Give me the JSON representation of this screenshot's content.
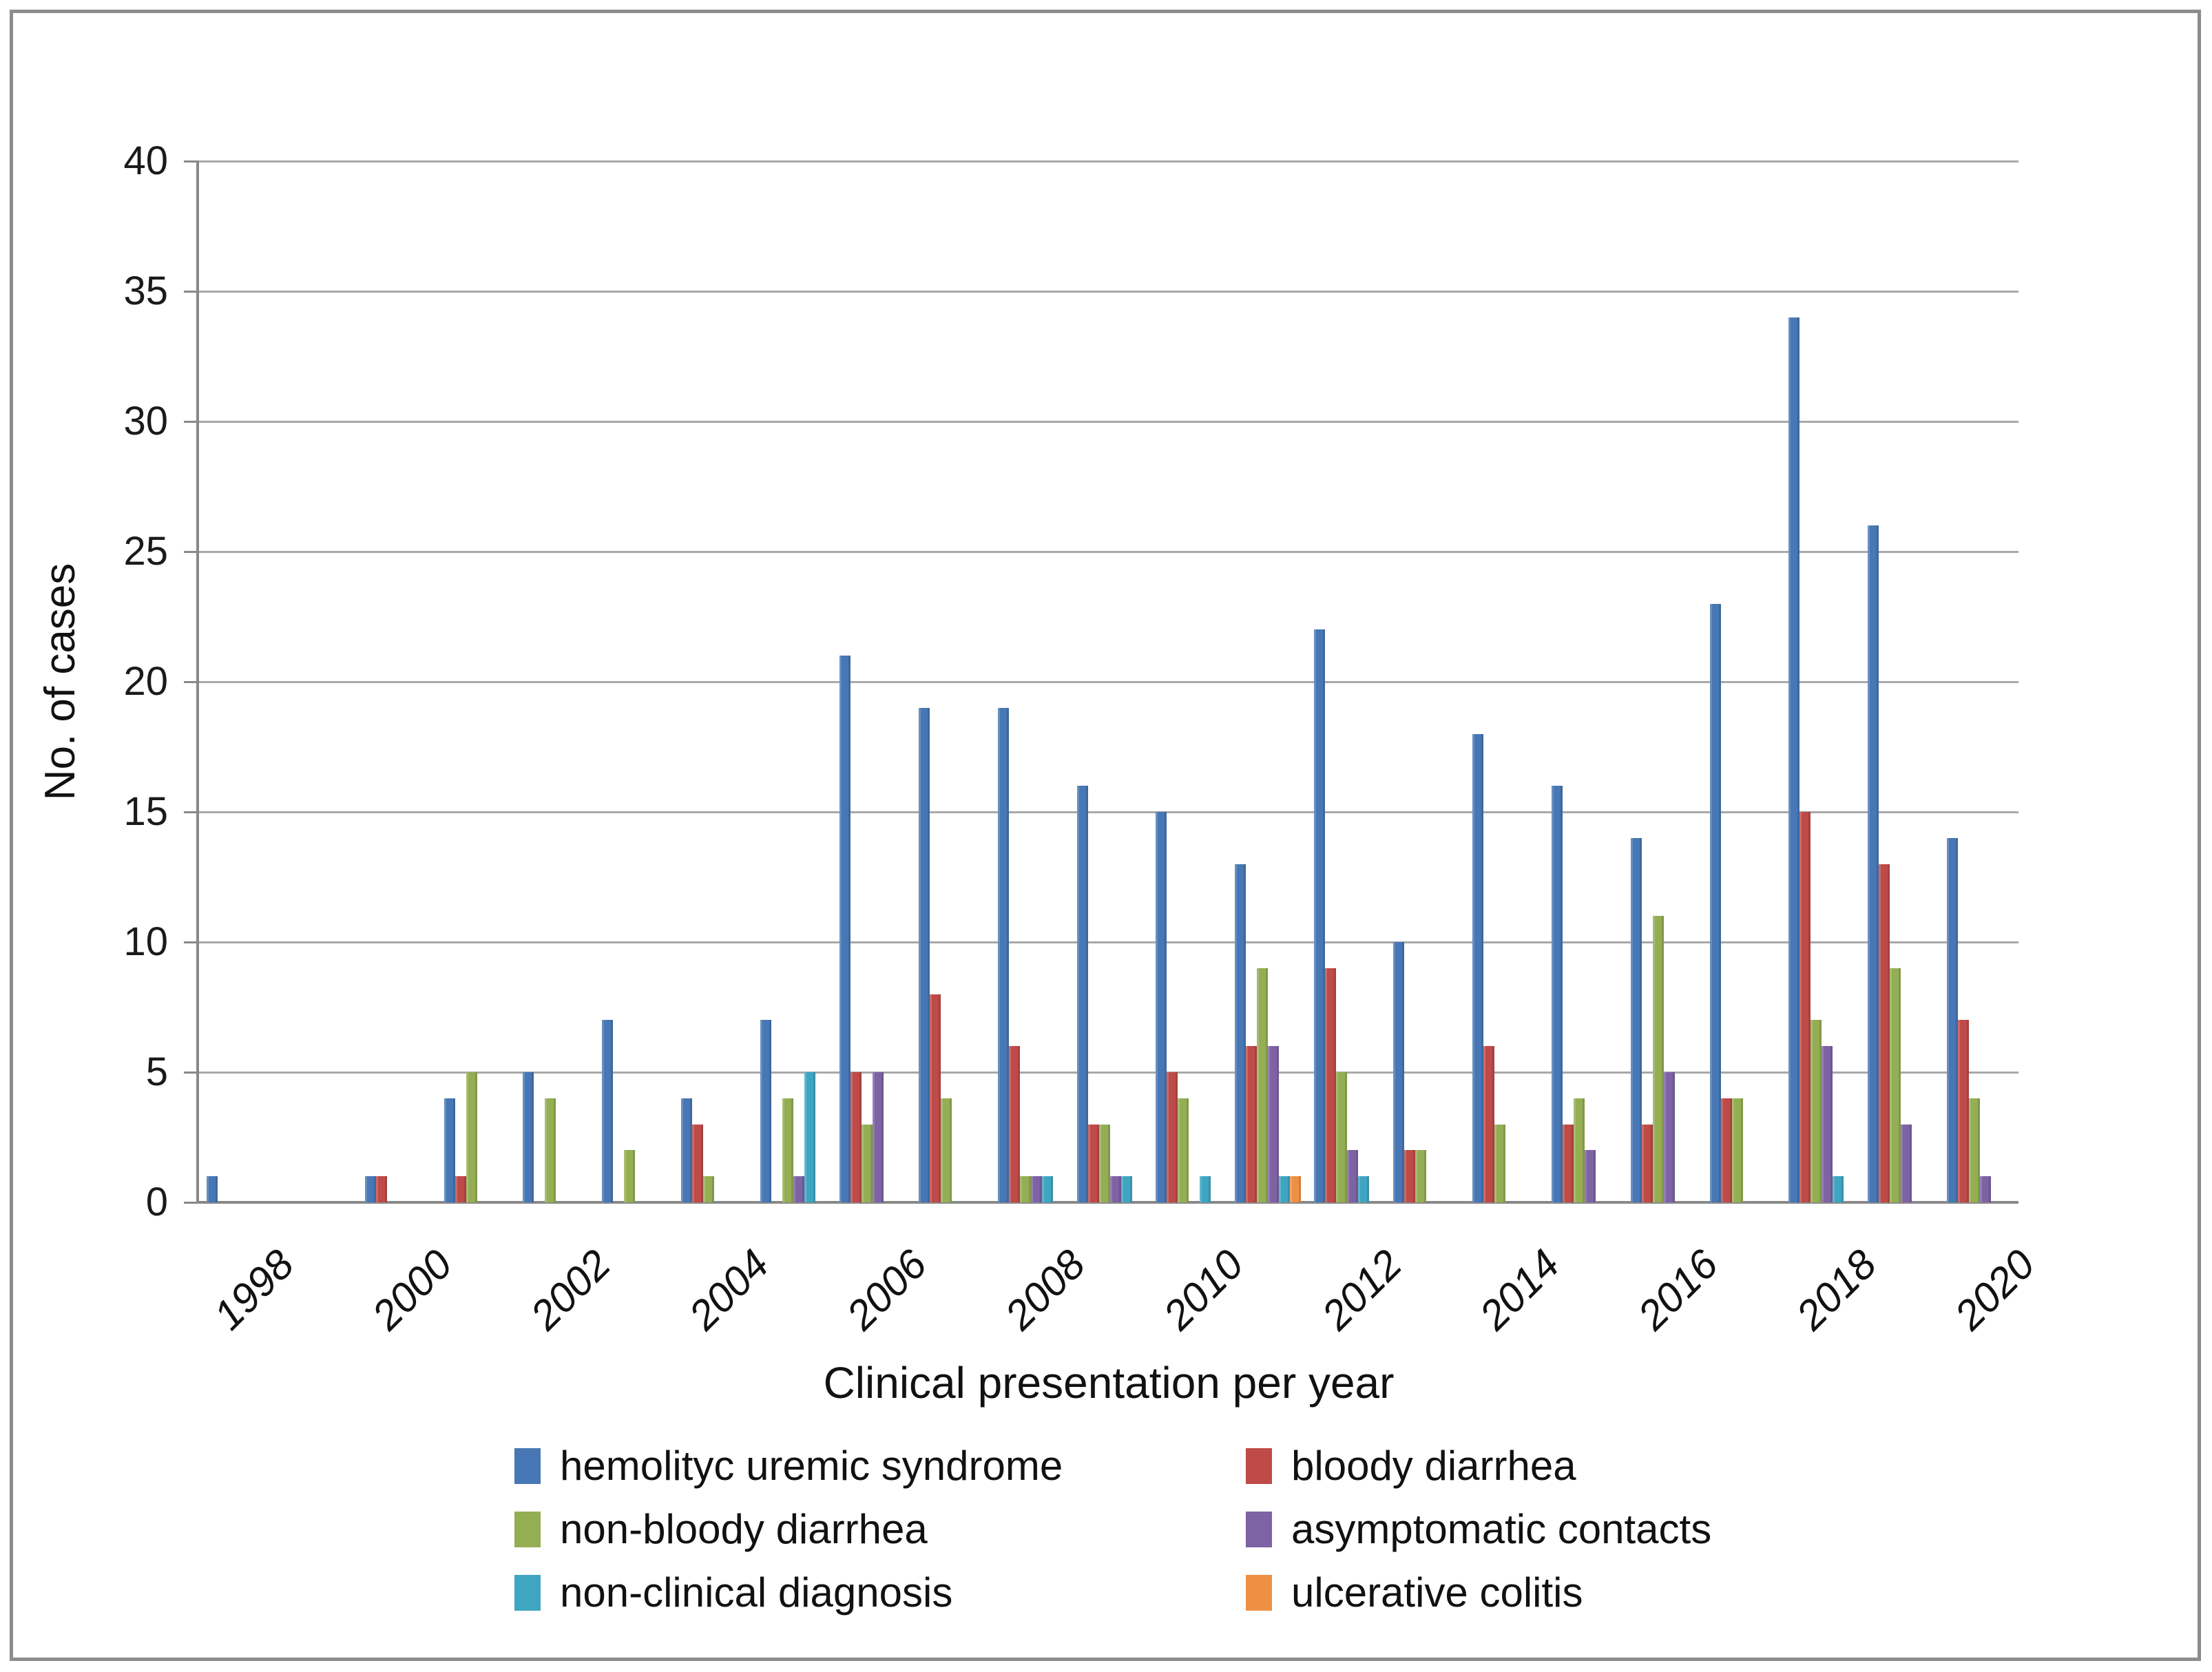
{
  "chart_data": {
    "type": "bar",
    "title": "",
    "xlabel": "Clinical presentation per year",
    "ylabel": "No. of cases",
    "ylim": [
      0,
      40
    ],
    "y_ticks": [
      0,
      5,
      10,
      15,
      20,
      25,
      30,
      35,
      40
    ],
    "grid": "horizontal gridlines on",
    "legend_position": "bottom, two columns",
    "categories": [
      1998,
      1999,
      2000,
      2001,
      2002,
      2003,
      2004,
      2005,
      2006,
      2007,
      2008,
      2009,
      2010,
      2011,
      2012,
      2013,
      2014,
      2015,
      2016,
      2017,
      2018,
      2019,
      2020
    ],
    "x_tick_labels": [
      "1998",
      "2000",
      "2002",
      "2004",
      "2006",
      "2008",
      "2010",
      "2012",
      "2014",
      "2016",
      "2018",
      "2020"
    ],
    "series": [
      {
        "name": "hemolityc uremic syndrome",
        "color": "#4777B4",
        "values": [
          1,
          0,
          1,
          4,
          5,
          7,
          4,
          7,
          21,
          19,
          19,
          16,
          15,
          13,
          22,
          10,
          18,
          16,
          14,
          23,
          34,
          26,
          14
        ]
      },
      {
        "name": "bloody diarrhea",
        "color": "#BE4B48",
        "values": [
          0,
          0,
          1,
          1,
          0,
          0,
          3,
          0,
          5,
          8,
          6,
          3,
          5,
          6,
          9,
          2,
          6,
          3,
          3,
          4,
          15,
          13,
          7
        ]
      },
      {
        "name": "non-bloody diarrhea",
        "color": "#94AE54",
        "values": [
          0,
          0,
          0,
          5,
          4,
          2,
          1,
          4,
          3,
          4,
          1,
          3,
          4,
          9,
          5,
          2,
          3,
          4,
          11,
          4,
          7,
          9,
          4
        ]
      },
      {
        "name": "asymptomatic contacts",
        "color": "#7D62A4",
        "values": [
          0,
          0,
          0,
          0,
          0,
          0,
          0,
          1,
          5,
          0,
          1,
          1,
          0,
          6,
          2,
          0,
          0,
          2,
          5,
          0,
          6,
          3,
          1
        ]
      },
      {
        "name": "non-clinical diagnosis",
        "color": "#3FA5C1",
        "values": [
          0,
          0,
          0,
          0,
          0,
          0,
          0,
          5,
          0,
          0,
          1,
          1,
          1,
          1,
          1,
          0,
          0,
          0,
          0,
          0,
          1,
          0,
          0
        ]
      },
      {
        "name": "ulcerative colitis",
        "color": "#ED9044",
        "values": [
          0,
          0,
          0,
          0,
          0,
          0,
          0,
          0,
          0,
          0,
          0,
          0,
          0,
          1,
          0,
          0,
          0,
          0,
          0,
          0,
          0,
          0,
          0
        ]
      }
    ]
  }
}
